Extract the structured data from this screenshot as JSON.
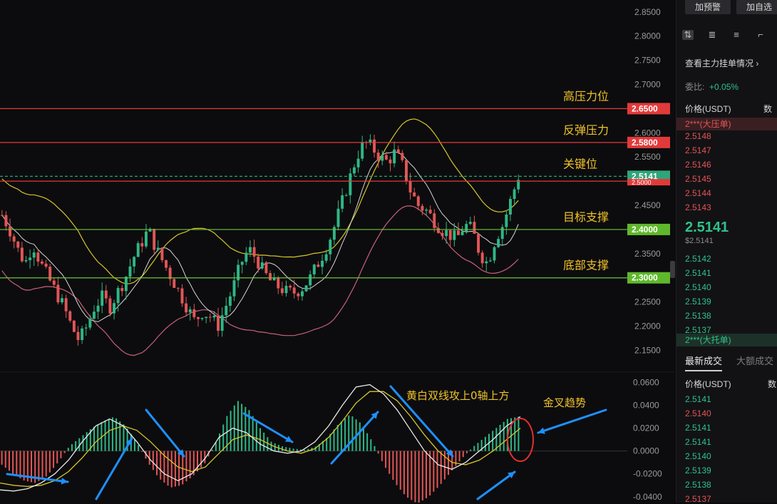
{
  "colors": {
    "up": "#2fb786",
    "down": "#e25656",
    "dif": "#e9e9e9",
    "dea": "#d9c62b",
    "ma_white": "#d6d6d6",
    "ma_yellow": "#d8c62a",
    "ma_pink": "#c9617a",
    "resistance": "#e23a3a",
    "support": "#6cc33a",
    "annotation_text": "#f0c32a",
    "arrow": "#1e90ff",
    "circle": "#e03030"
  },
  "chart_data": [
    {
      "type": "candlestick",
      "y_axis_ticks": [
        "2.8500",
        "2.8000",
        "2.7500",
        "2.7000",
        "2.6500",
        "2.6000",
        "2.5500",
        "2.5000",
        "2.4500",
        "2.4000",
        "2.3500",
        "2.3000",
        "2.2500",
        "2.2000",
        "2.1500"
      ],
      "ylim": [
        2.13,
        2.86
      ],
      "current_price": 2.5141,
      "levels": [
        {
          "label": "高压力位",
          "value": 2.65,
          "tag": "2.6500",
          "kind": "resistance"
        },
        {
          "label": "反弹压力",
          "value": 2.58,
          "tag": "2.5800",
          "kind": "resistance"
        },
        {
          "label": "关键位",
          "value": 2.51,
          "tag": "2.5141",
          "kind": "current"
        },
        {
          "label": "目标支撑",
          "value": 2.4,
          "tag": "2.4000",
          "kind": "support"
        },
        {
          "label": "底部支撑",
          "value": 2.3,
          "tag": "2.3000",
          "kind": "support"
        }
      ],
      "hidden_tag": "2.5000",
      "candles_close_path": [
        2.43,
        2.4,
        2.36,
        2.33,
        2.37,
        2.33,
        2.3,
        2.27,
        2.24,
        2.2,
        2.17,
        2.2,
        2.24,
        2.26,
        2.24,
        2.27,
        2.3,
        2.34,
        2.37,
        2.4,
        2.36,
        2.33,
        2.3,
        2.27,
        2.24,
        2.21,
        2.23,
        2.22,
        2.2,
        2.24,
        2.28,
        2.33,
        2.36,
        2.34,
        2.31,
        2.29,
        2.28,
        2.27,
        2.27,
        2.28,
        2.3,
        2.33,
        2.36,
        2.4,
        2.45,
        2.5,
        2.55,
        2.58,
        2.57,
        2.55,
        2.54,
        2.56,
        2.53,
        2.48,
        2.45,
        2.44,
        2.42,
        2.4,
        2.39,
        2.38,
        2.41,
        2.4,
        2.35,
        2.33,
        2.38,
        2.41,
        2.46,
        2.51
      ]
    },
    {
      "type": "macd",
      "y_axis_ticks": [
        "0.0600",
        "0.0400",
        "0.0200",
        "0.0000",
        "-0.0200",
        "-0.0400"
      ],
      "ylim": [
        -0.042,
        0.064
      ],
      "histogram": [
        -0.012,
        -0.02,
        -0.026,
        -0.028,
        -0.022,
        -0.01,
        0.004,
        0.012,
        0.02,
        0.026,
        0.03,
        0.022,
        0.008,
        -0.01,
        -0.024,
        -0.032,
        -0.03,
        -0.022,
        -0.012,
        0.006,
        0.03,
        0.044,
        0.036,
        0.02,
        0.008,
        0.004,
        0.002,
        0.001,
        0.004,
        0.012,
        0.024,
        0.032,
        0.024,
        0.008,
        -0.012,
        -0.028,
        -0.04,
        -0.046,
        -0.04,
        -0.03,
        -0.018,
        -0.006,
        0.004,
        0.012,
        0.02,
        0.028,
        0.03
      ],
      "dif": [
        -0.034,
        -0.035,
        -0.033,
        -0.028,
        -0.02,
        -0.008,
        0.008,
        0.022,
        0.028,
        0.022,
        0.008,
        -0.008,
        -0.02,
        -0.026,
        -0.02,
        -0.006,
        0.012,
        0.02,
        0.016,
        0.006,
        0.0,
        -0.002,
        0.0,
        0.008,
        0.022,
        0.04,
        0.056,
        0.058,
        0.05,
        0.036,
        0.018,
        0.0,
        -0.012,
        -0.016,
        -0.01,
        0.0,
        0.01,
        0.022,
        0.03
      ],
      "dea": [
        -0.028,
        -0.03,
        -0.031,
        -0.03,
        -0.026,
        -0.018,
        -0.006,
        0.008,
        0.018,
        0.022,
        0.018,
        0.008,
        -0.004,
        -0.014,
        -0.018,
        -0.014,
        -0.002,
        0.01,
        0.014,
        0.01,
        0.004,
        0.0,
        -0.002,
        0.002,
        0.012,
        0.026,
        0.042,
        0.052,
        0.052,
        0.044,
        0.03,
        0.014,
        0.0,
        -0.01,
        -0.012,
        -0.008,
        0.0,
        0.01,
        0.02
      ]
    }
  ],
  "annotations": {
    "golden_cross": "金叉趋势",
    "dual_line": "黄白双线攻上0轴上方"
  },
  "sidebar": {
    "btn_alert": "加预警",
    "btn_watch": "加自选",
    "orderbook_link": "查看主力挂单情况",
    "ratio_label": "委比:",
    "ratio_value": "+0.05%",
    "price_header": "价格(USDT)",
    "qty_header": "数",
    "big_sell": "2***(大压单)",
    "asks": [
      "2.5148",
      "2.5147",
      "2.5146",
      "2.5145",
      "2.5144",
      "2.5143"
    ],
    "last_price": "2.5141",
    "last_price_sub": "$2.5141",
    "bids": [
      "2.5142",
      "2.5141",
      "2.5140",
      "2.5139",
      "2.5138",
      "2.5137"
    ],
    "big_buy": "2***(大托单)",
    "tab_latest": "最新成交",
    "tab_large": "大额成交",
    "trades_header": "价格(USDT)",
    "trades_qty_header": "数",
    "trades": [
      {
        "price": "2.5141",
        "side": "up"
      },
      {
        "price": "2.5140",
        "side": "down"
      },
      {
        "price": "2.5141",
        "side": "up"
      },
      {
        "price": "2.5141",
        "side": "up"
      },
      {
        "price": "2.5140",
        "side": "up"
      },
      {
        "price": "2.5139",
        "side": "up"
      },
      {
        "price": "2.5138",
        "side": "up"
      },
      {
        "price": "2.5137",
        "side": "down"
      }
    ]
  }
}
